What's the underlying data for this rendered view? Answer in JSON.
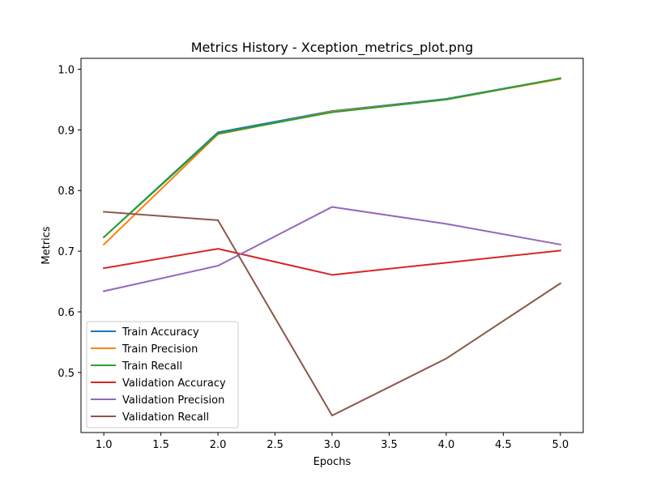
{
  "chart_data": {
    "type": "line",
    "title": "Metrics History - Xception_metrics_plot.png",
    "xlabel": "Epochs",
    "ylabel": "Metrics",
    "x": [
      1,
      2,
      3,
      4,
      5
    ],
    "xlim": [
      0.8,
      5.2
    ],
    "ylim": [
      0.401,
      1.018
    ],
    "xticks": [
      1.0,
      1.5,
      2.0,
      2.5,
      3.0,
      3.5,
      4.0,
      4.5,
      5.0
    ],
    "xtick_labels": [
      "1.0",
      "1.5",
      "2.0",
      "2.5",
      "3.0",
      "3.5",
      "4.0",
      "4.5",
      "5.0"
    ],
    "yticks": [
      0.5,
      0.6,
      0.7,
      0.8,
      0.9,
      1.0
    ],
    "ytick_labels": [
      "0.5",
      "0.6",
      "0.7",
      "0.8",
      "0.9",
      "1.0"
    ],
    "grid": false,
    "legend_position": "lower left",
    "series": [
      {
        "name": "Train Accuracy",
        "color": "#1f77b4",
        "values": [
          0.723,
          0.896,
          0.931,
          0.951,
          0.985
        ]
      },
      {
        "name": "Train Precision",
        "color": "#ff7f0e",
        "values": [
          0.711,
          0.893,
          0.93,
          0.95,
          0.984
        ]
      },
      {
        "name": "Train Recall",
        "color": "#2ca02c",
        "values": [
          0.723,
          0.894,
          0.929,
          0.95,
          0.985
        ]
      },
      {
        "name": "Validation Accuracy",
        "color": "#d62728",
        "values": [
          0.672,
          0.704,
          0.661,
          0.681,
          0.701
        ]
      },
      {
        "name": "Validation Precision",
        "color": "#9467bd",
        "values": [
          0.634,
          0.676,
          0.773,
          0.745,
          0.711
        ]
      },
      {
        "name": "Validation Recall",
        "color": "#8c564b",
        "values": [
          0.765,
          0.751,
          0.429,
          0.523,
          0.647
        ]
      }
    ]
  }
}
